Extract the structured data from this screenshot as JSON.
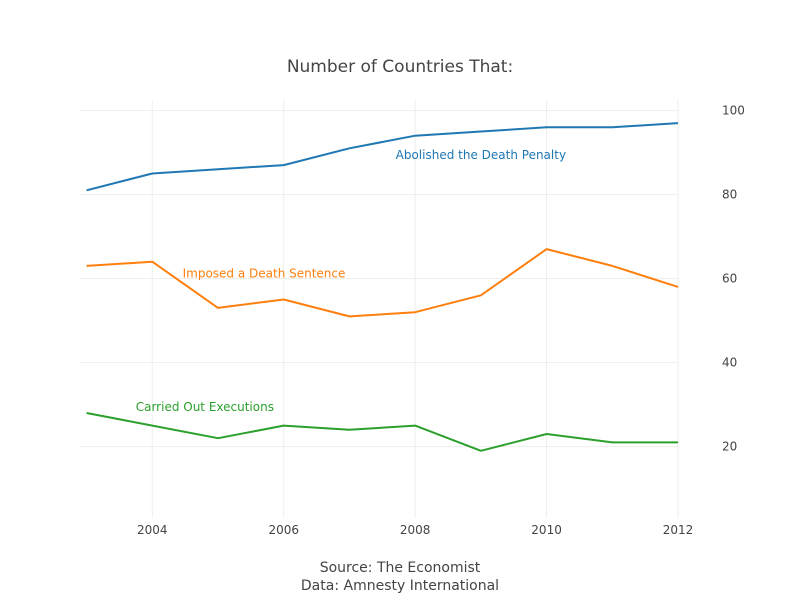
{
  "chart_data": {
    "type": "line",
    "title": "Number of Countries That:",
    "x": [
      2003,
      2004,
      2005,
      2006,
      2007,
      2008,
      2009,
      2010,
      2011,
      2012
    ],
    "xlim": [
      2002.9,
      2012
    ],
    "ylim": [
      3,
      102.5
    ],
    "x_ticks": [
      2004,
      2006,
      2008,
      2010,
      2012
    ],
    "y_ticks": [
      20,
      40,
      60,
      80,
      100
    ],
    "y_axis_side": "right",
    "grid": true,
    "series": [
      {
        "name": "Abolished the Death Penalty",
        "color": "#1f77b4",
        "values": [
          81,
          85,
          86,
          87,
          91,
          94,
          95,
          96,
          96,
          97
        ],
        "label_anchor": {
          "x": 2009.0,
          "y": 88.5
        }
      },
      {
        "name": "Imposed a Death Sentence",
        "color": "#ff7f0e",
        "values": [
          63,
          64,
          53,
          55,
          51,
          52,
          56,
          67,
          63,
          58
        ],
        "label_anchor": {
          "x": 2005.7,
          "y": 60.2
        }
      },
      {
        "name": "Carried Out Executions",
        "color": "#2ca02c",
        "values": [
          28,
          25,
          22,
          25,
          24,
          25,
          19,
          23,
          21,
          21
        ],
        "label_anchor": {
          "x": 2004.8,
          "y": 28.5
        }
      }
    ],
    "source_line1": "Source: The Economist",
    "source_line2": "Data: Amnesty International"
  }
}
